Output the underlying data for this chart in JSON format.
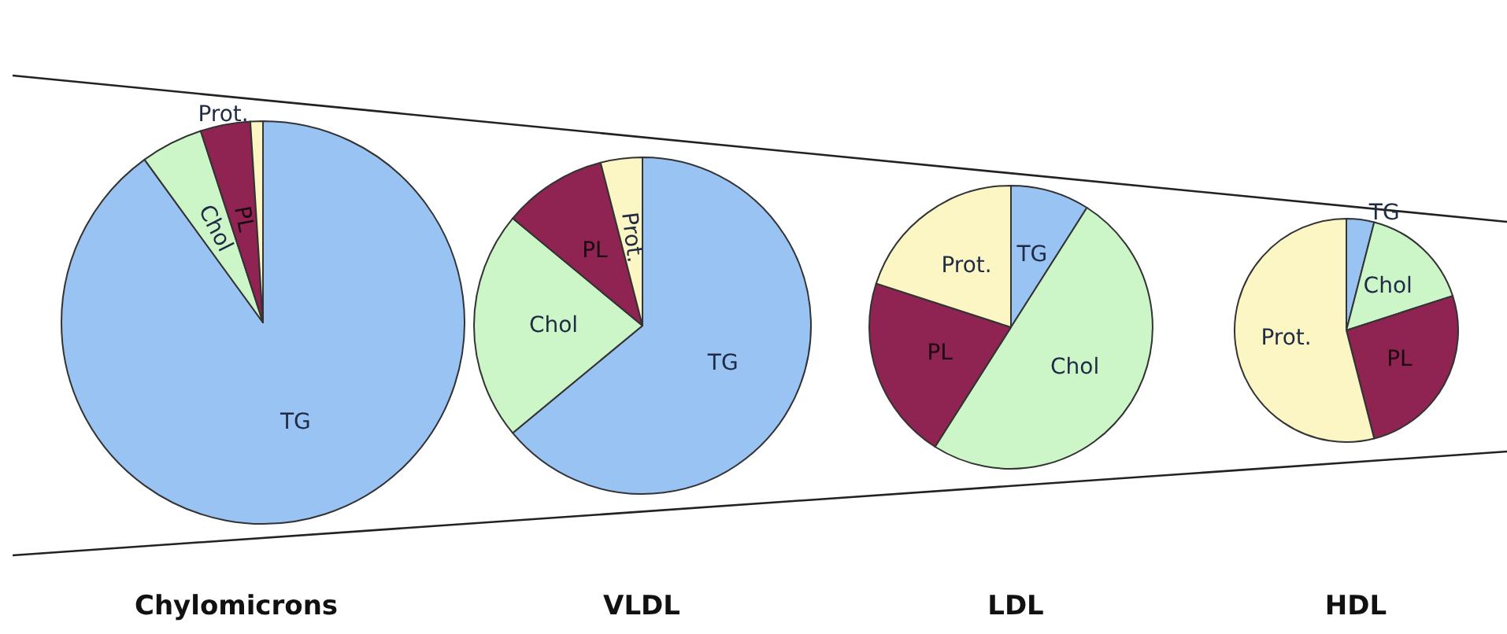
{
  "chart_data": [
    {
      "type": "pie",
      "title": "Chylomicrons",
      "categories": [
        "TG",
        "Chol",
        "PL",
        "Prot."
      ],
      "values": [
        90,
        5,
        4,
        1
      ],
      "colors": [
        "#99c3f2",
        "#ccf5c8",
        "#8f2352",
        "#fbf6c4"
      ]
    },
    {
      "type": "pie",
      "title": "VLDL",
      "categories": [
        "TG",
        "Chol",
        "PL",
        "Prot."
      ],
      "values": [
        64,
        22,
        10,
        4
      ],
      "colors": [
        "#99c3f2",
        "#ccf5c8",
        "#8f2352",
        "#fbf6c4"
      ]
    },
    {
      "type": "pie",
      "title": "LDL",
      "categories": [
        "TG",
        "Chol",
        "PL",
        "Prot."
      ],
      "values": [
        9,
        50,
        21,
        20
      ],
      "colors": [
        "#99c3f2",
        "#ccf5c8",
        "#8f2352",
        "#fbf6c4"
      ]
    },
    {
      "type": "pie",
      "title": "HDL",
      "categories": [
        "TG",
        "Chol",
        "PL",
        "Prot."
      ],
      "values": [
        4,
        16,
        26,
        54
      ],
      "colors": [
        "#99c3f2",
        "#ccf5c8",
        "#8f2352",
        "#fbf6c4"
      ]
    }
  ]
}
